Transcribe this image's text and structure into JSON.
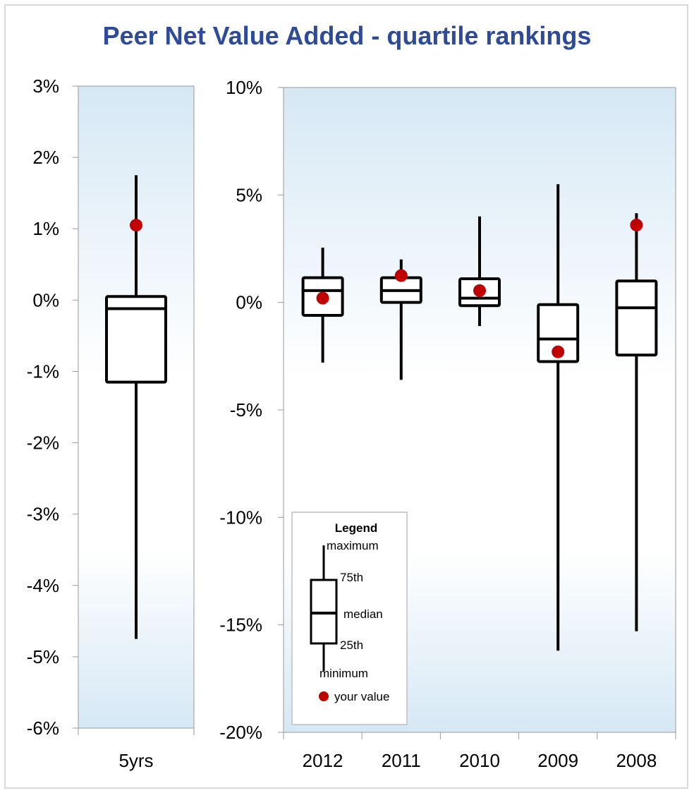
{
  "title": "Peer Net Value Added - quartile rankings",
  "colors": {
    "title": "#2e4a9a",
    "plot_bg_top": "#d6e8f5",
    "plot_bg_bottom": "#ffffff",
    "box_stroke": "#000000",
    "marker": "#c00000",
    "axis": "#999999"
  },
  "chart_data": [
    {
      "type": "boxplot",
      "panel": "left",
      "categories": [
        "5yrs"
      ],
      "ylim": [
        -6,
        3
      ],
      "yticks": [
        "3%",
        "2%",
        "1%",
        "0%",
        "-1%",
        "-2%",
        "-3%",
        "-4%",
        "-5%",
        "-6%"
      ],
      "yticks_values": [
        3,
        2,
        1,
        0,
        -1,
        -2,
        -3,
        -4,
        -5,
        -6
      ],
      "boxes": [
        {
          "label": "5yrs",
          "min": -4.75,
          "q1": -1.15,
          "median": -0.12,
          "q3": 0.05,
          "max": 1.75,
          "value": 1.05
        }
      ]
    },
    {
      "type": "boxplot",
      "panel": "right",
      "categories": [
        "2012",
        "2011",
        "2010",
        "2009",
        "2008"
      ],
      "ylim": [
        -20,
        10
      ],
      "yticks": [
        "10%",
        "5%",
        "0%",
        "-5%",
        "-10%",
        "-15%",
        "-20%"
      ],
      "yticks_values": [
        10,
        5,
        0,
        -5,
        -10,
        -15,
        -20
      ],
      "boxes": [
        {
          "label": "2012",
          "min": -2.8,
          "q1": -0.6,
          "median": 0.55,
          "q3": 1.15,
          "max": 2.55,
          "value": 0.2
        },
        {
          "label": "2011",
          "min": -3.6,
          "q1": 0.0,
          "median": 0.55,
          "q3": 1.15,
          "max": 2.0,
          "value": 1.25
        },
        {
          "label": "2010",
          "min": -1.1,
          "q1": -0.15,
          "median": 0.2,
          "q3": 1.1,
          "max": 4.0,
          "value": 0.55
        },
        {
          "label": "2009",
          "min": -16.2,
          "q1": -2.75,
          "median": -1.7,
          "q3": -0.1,
          "max": 5.5,
          "value": -2.3
        },
        {
          "label": "2008",
          "min": -15.3,
          "q1": -2.45,
          "median": -0.25,
          "q3": 1.0,
          "max": 4.15,
          "value": 3.6
        }
      ]
    }
  ],
  "legend": {
    "title": "Legend",
    "maximum": "maximum",
    "q3": "75th",
    "median": "median",
    "q1": "25th",
    "minimum": "minimum",
    "value": "your value"
  }
}
